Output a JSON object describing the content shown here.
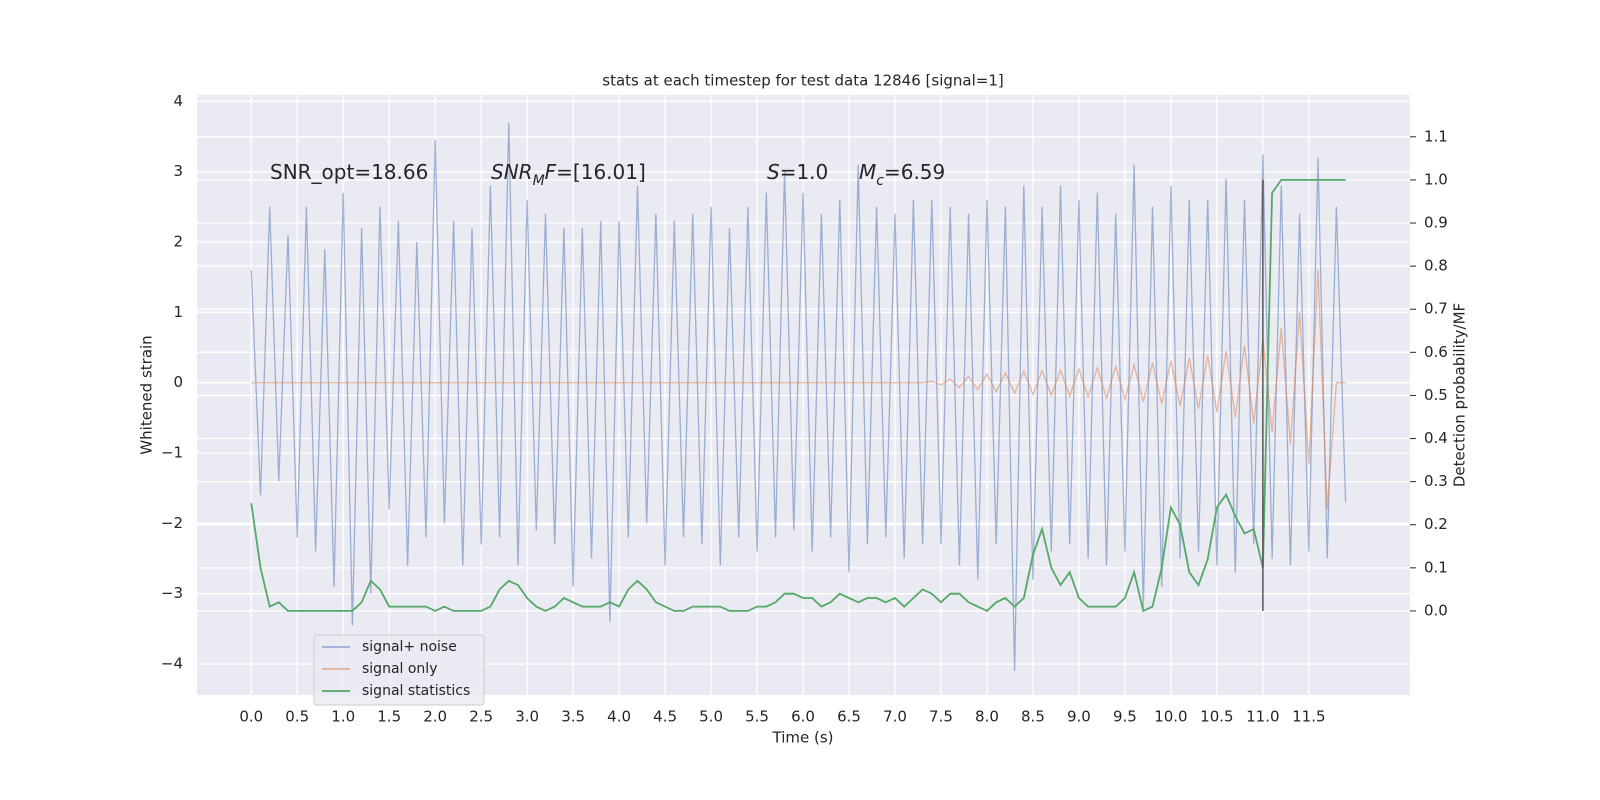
{
  "chart_data": {
    "type": "line",
    "title": "stats at each timestep for test data 12846 [signal=1]",
    "xlabel": "Time (s)",
    "ylabel": "Whitened strain",
    "y2label": "Detection probability/MF",
    "xlim": [
      -0.59,
      12.6
    ],
    "ylim": [
      -4.44,
      4.09
    ],
    "y2lim": [
      -0.195,
      1.197
    ],
    "grid": true,
    "legend": "lower left",
    "xticks": [
      {
        "value": 0.0,
        "label": "0.0"
      },
      {
        "value": 0.5,
        "label": "0.5"
      },
      {
        "value": 1.0,
        "label": "1.0"
      },
      {
        "value": 1.5,
        "label": "1.5"
      },
      {
        "value": 2.0,
        "label": "2.0"
      },
      {
        "value": 2.5,
        "label": "2.5"
      },
      {
        "value": 3.0,
        "label": "3.0"
      },
      {
        "value": 3.5,
        "label": "3.5"
      },
      {
        "value": 4.0,
        "label": "4.0"
      },
      {
        "value": 4.5,
        "label": "4.5"
      },
      {
        "value": 5.0,
        "label": "5.0"
      },
      {
        "value": 5.5,
        "label": "5.5"
      },
      {
        "value": 6.0,
        "label": "6.0"
      },
      {
        "value": 6.5,
        "label": "6.5"
      },
      {
        "value": 7.0,
        "label": "7.0"
      },
      {
        "value": 7.5,
        "label": "7.5"
      },
      {
        "value": 8.0,
        "label": "8.0"
      },
      {
        "value": 8.5,
        "label": "8.5"
      },
      {
        "value": 9.0,
        "label": "9.0"
      },
      {
        "value": 9.5,
        "label": "9.5"
      },
      {
        "value": 10.0,
        "label": "10.0"
      },
      {
        "value": 10.5,
        "label": "10.5"
      },
      {
        "value": 11.0,
        "label": "11.0"
      },
      {
        "value": 11.5,
        "label": "11.5"
      }
    ],
    "yticks": [
      {
        "value": -4,
        "label": "−4"
      },
      {
        "value": -3,
        "label": "−3"
      },
      {
        "value": -2,
        "label": "−2"
      },
      {
        "value": -1,
        "label": "−1"
      },
      0,
      1,
      2,
      3,
      4
    ],
    "y2ticks": [
      {
        "value": 0.0,
        "label": "0.0"
      },
      {
        "value": 0.1,
        "label": "0.1"
      },
      {
        "value": 0.2,
        "label": "0.2"
      },
      {
        "value": 0.3,
        "label": "0.3"
      },
      {
        "value": 0.4,
        "label": "0.4"
      },
      {
        "value": 0.5,
        "label": "0.5"
      },
      {
        "value": 0.6,
        "label": "0.6"
      },
      {
        "value": 0.7,
        "label": "0.7"
      },
      {
        "value": 0.8,
        "label": "0.8"
      },
      {
        "value": 0.9,
        "label": "0.9"
      },
      {
        "value": 1.0,
        "label": "1.0"
      },
      {
        "value": 1.1,
        "label": "1.1"
      }
    ],
    "annotations": [
      [
        {
          "text": "SNR_opt=18.66"
        }
      ],
      [
        {
          "text": "SNR",
          "italic": true
        },
        {
          "text": "M",
          "italic": true,
          "sub": true
        },
        {
          "text": "F",
          "italic": true
        },
        {
          "text": "=[16.01]"
        }
      ],
      [
        {
          "text": "S",
          "italic": true
        },
        {
          "text": "=1.0"
        }
      ],
      [
        {
          "text": "M",
          "italic": true
        },
        {
          "text": "c",
          "italic": true,
          "sub": true
        },
        {
          "text": "=6.59"
        }
      ]
    ],
    "vline": {
      "x": 11.0,
      "y2": [
        0.0,
        1.0
      ],
      "color": "#555555"
    },
    "x": [
      0.0,
      0.1,
      0.2,
      0.3,
      0.4,
      0.5,
      0.6,
      0.7,
      0.8,
      0.9,
      1.0,
      1.1,
      1.2,
      1.3,
      1.4,
      1.5,
      1.6,
      1.7,
      1.8,
      1.9,
      2.0,
      2.1,
      2.2,
      2.3,
      2.4,
      2.5,
      2.6,
      2.7,
      2.8,
      2.9,
      3.0,
      3.1,
      3.2,
      3.3,
      3.4,
      3.5,
      3.6,
      3.7,
      3.8,
      3.9,
      4.0,
      4.1,
      4.2,
      4.3,
      4.4,
      4.5,
      4.6,
      4.7,
      4.8,
      4.9,
      5.0,
      5.1,
      5.2,
      5.3,
      5.4,
      5.5,
      5.6,
      5.7,
      5.8,
      5.9,
      6.0,
      6.1,
      6.2,
      6.3,
      6.4,
      6.5,
      6.6,
      6.7,
      6.8,
      6.9,
      7.0,
      7.1,
      7.2,
      7.3,
      7.4,
      7.5,
      7.6,
      7.7,
      7.8,
      7.9,
      8.0,
      8.1,
      8.2,
      8.3,
      8.4,
      8.5,
      8.6,
      8.7,
      8.8,
      8.9,
      9.0,
      9.1,
      9.2,
      9.3,
      9.4,
      9.5,
      9.6,
      9.7,
      9.8,
      9.9,
      10.0,
      10.1,
      10.2,
      10.3,
      10.4,
      10.5,
      10.6,
      10.7,
      10.8,
      10.9,
      11.0,
      11.1,
      11.2,
      11.3,
      11.4,
      11.5,
      11.6,
      11.7,
      11.8,
      11.9
    ],
    "series": [
      {
        "name": "signal+ noise",
        "color": "#4c72b0",
        "opacity": 0.5,
        "values": [
          1.6,
          -1.6,
          2.5,
          -1.4,
          2.1,
          -2.2,
          2.5,
          -2.4,
          1.9,
          -2.9,
          2.7,
          -3.45,
          2.2,
          -3.0,
          2.5,
          -1.8,
          2.3,
          -2.6,
          2.0,
          -2.2,
          3.45,
          -2.0,
          2.3,
          -2.6,
          2.2,
          -2.3,
          2.8,
          -2.2,
          3.7,
          -2.6,
          2.6,
          -2.1,
          2.4,
          -2.3,
          2.2,
          -2.9,
          2.2,
          -2.5,
          2.3,
          -3.4,
          2.3,
          -2.2,
          2.8,
          -2.0,
          2.4,
          -2.6,
          2.3,
          -2.2,
          2.4,
          -2.3,
          2.5,
          -2.6,
          2.2,
          -2.2,
          2.5,
          -2.4,
          2.7,
          -2.2,
          3.0,
          -2.1,
          2.7,
          -2.4,
          2.4,
          -2.2,
          2.6,
          -2.7,
          3.1,
          -2.3,
          2.5,
          -2.2,
          2.4,
          -2.5,
          2.6,
          -2.3,
          2.6,
          -2.3,
          2.5,
          -2.6,
          2.4,
          -2.8,
          2.6,
          -2.3,
          2.5,
          -4.1,
          2.8,
          -2.8,
          2.5,
          -2.4,
          2.8,
          -2.3,
          2.6,
          -2.5,
          2.7,
          -2.6,
          2.4,
          -2.4,
          3.1,
          -3.2,
          2.5,
          -2.9,
          2.8,
          -2.5,
          2.6,
          -2.4,
          2.6,
          -2.6,
          2.9,
          -2.7,
          2.6,
          -2.3,
          3.25,
          -2.5,
          2.8,
          -2.6,
          2.4,
          -2.4,
          3.2,
          -2.5,
          2.5,
          -1.7
        ]
      },
      {
        "name": "signal only",
        "color": "#dd8452",
        "opacity": 0.55,
        "values": [
          0,
          0,
          0,
          0,
          0,
          0,
          0,
          0,
          0,
          0,
          0,
          0,
          0,
          0,
          0,
          0,
          0,
          0,
          0,
          0,
          0,
          0,
          0,
          0,
          0,
          0,
          0,
          0,
          0,
          0,
          0,
          0,
          0,
          0,
          0,
          0,
          0,
          0,
          0,
          0,
          0,
          0,
          0,
          0,
          0,
          0,
          0,
          0,
          0,
          0,
          0,
          0,
          0,
          0,
          0,
          0,
          0,
          0,
          0,
          0,
          0,
          0,
          0,
          0,
          0,
          0,
          0,
          0,
          0,
          0,
          0,
          0,
          0,
          0,
          0.02,
          -0.03,
          0.05,
          -0.07,
          0.09,
          -0.1,
          0.12,
          -0.13,
          0.14,
          -0.15,
          0.16,
          -0.17,
          0.17,
          -0.18,
          0.18,
          -0.19,
          0.19,
          -0.2,
          0.21,
          -0.22,
          0.23,
          -0.24,
          0.25,
          -0.27,
          0.28,
          -0.3,
          0.31,
          -0.33,
          0.35,
          -0.37,
          0.39,
          -0.42,
          0.45,
          -0.49,
          0.53,
          -0.58,
          0.63,
          -0.7,
          0.78,
          -0.88,
          1.0,
          -1.15,
          1.6,
          -1.8,
          0,
          0
        ]
      },
      {
        "name": "signal statistics",
        "color": "#55a868",
        "opacity": 1,
        "axis": "y2",
        "values": [
          0.25,
          0.1,
          0.01,
          0.02,
          0.0,
          0.0,
          0.0,
          0.0,
          0.0,
          0.0,
          0.0,
          0.0,
          0.02,
          0.07,
          0.05,
          0.01,
          0.01,
          0.01,
          0.01,
          0.01,
          0.0,
          0.01,
          0.0,
          0.0,
          0.0,
          0.0,
          0.01,
          0.05,
          0.07,
          0.06,
          0.03,
          0.01,
          0.0,
          0.01,
          0.03,
          0.02,
          0.01,
          0.01,
          0.01,
          0.02,
          0.01,
          0.05,
          0.07,
          0.05,
          0.02,
          0.01,
          0.0,
          0.0,
          0.01,
          0.01,
          0.01,
          0.01,
          0.0,
          0.0,
          0.0,
          0.01,
          0.01,
          0.02,
          0.04,
          0.04,
          0.03,
          0.03,
          0.01,
          0.02,
          0.04,
          0.03,
          0.02,
          0.03,
          0.03,
          0.02,
          0.03,
          0.01,
          0.03,
          0.05,
          0.04,
          0.02,
          0.04,
          0.04,
          0.02,
          0.01,
          0.0,
          0.02,
          0.03,
          0.01,
          0.03,
          0.13,
          0.19,
          0.1,
          0.06,
          0.09,
          0.03,
          0.01,
          0.01,
          0.01,
          0.01,
          0.03,
          0.09,
          0.0,
          0.01,
          0.1,
          0.24,
          0.2,
          0.09,
          0.06,
          0.12,
          0.24,
          0.27,
          0.22,
          0.18,
          0.19,
          0.1,
          0.97,
          1.0,
          1.0,
          1.0,
          1.0,
          1.0,
          1.0,
          1.0,
          1.0
        ]
      }
    ]
  }
}
